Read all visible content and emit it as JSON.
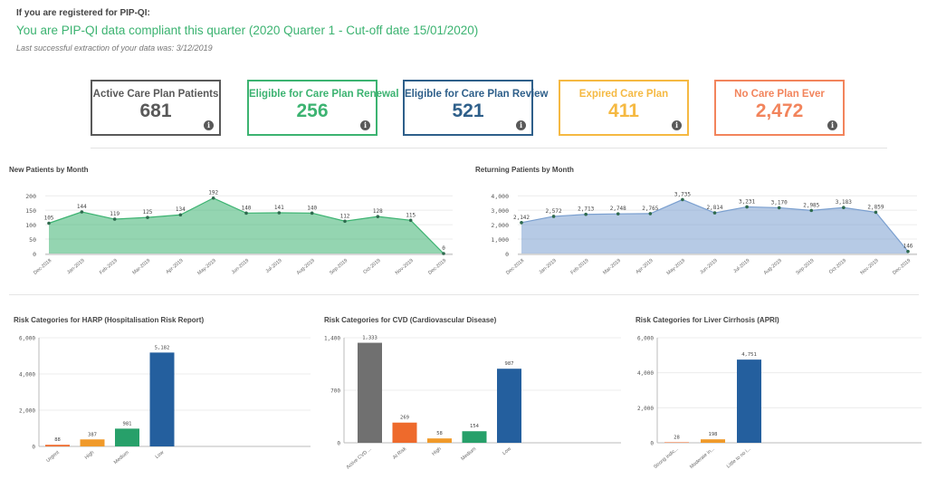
{
  "header": {
    "registered_label": "If you are registered for PIP-QI:",
    "compliance_text": "You are PIP-QI data compliant this quarter (2020 Quarter 1 - Cut-off date 15/01/2020)",
    "extraction_text": "Last successful extraction of your data was: 3/12/2019"
  },
  "kpis": [
    {
      "label": "Active Care Plan Patients",
      "value": "681",
      "color": "#595959"
    },
    {
      "label": "Eligible for Care Plan Renewal",
      "value": "256",
      "color": "#3cb371"
    },
    {
      "label": "Eligible for Care Plan Review",
      "value": "521",
      "color": "#2e5f8a"
    },
    {
      "label": "Expired Care Plan",
      "value": "411",
      "color": "#f5b942"
    },
    {
      "label": "No Care Plan Ever",
      "value": "2,472",
      "color": "#f2845c"
    }
  ],
  "info_glyph": "i",
  "colors": {
    "green": "#3cb371",
    "blue": "#7a9fcf",
    "grey": "#707070",
    "orange_red": "#ee6a2c",
    "orange": "#f09a2a",
    "teal": "#27a06a",
    "navy": "#245f9e"
  },
  "chart_data": [
    {
      "type": "area",
      "title": "New Patients by Month",
      "categories": [
        "Dec-2018",
        "Jan-2019",
        "Feb-2019",
        "Mar-2019",
        "Apr-2019",
        "May-2019",
        "Jun-2019",
        "Jul-2019",
        "Aug-2019",
        "Sep-2019",
        "Oct-2019",
        "Nov-2019",
        "Dec-2019"
      ],
      "values": [
        105,
        144,
        119,
        125,
        134,
        192,
        140,
        141,
        140,
        112,
        128,
        115,
        0
      ],
      "labels": [
        "105",
        "144",
        "119",
        "125",
        "134",
        "192",
        "140",
        "141",
        "140",
        "112",
        "128",
        "115",
        "0"
      ],
      "yticks": [
        0,
        50,
        100,
        150,
        200
      ],
      "ytick_labels": [
        "0",
        "50",
        "100",
        "150",
        "200"
      ],
      "ylim": [
        0,
        210
      ],
      "color": "#3cb371"
    },
    {
      "type": "area",
      "title": "Returning Patients by Month",
      "categories": [
        "Dec-2018",
        "Jan-2019",
        "Feb-2019",
        "Mar-2019",
        "Apr-2019",
        "May-2019",
        "Jun-2019",
        "Jul-2019",
        "Aug-2019",
        "Sep-2019",
        "Oct-2019",
        "Nov-2019",
        "Dec-2019"
      ],
      "values": [
        2142,
        2572,
        2713,
        2748,
        2765,
        3735,
        2814,
        3231,
        3170,
        2985,
        3183,
        2859,
        146
      ],
      "labels": [
        "2,142",
        "2,572",
        "2,713",
        "2,748",
        "2,765",
        "3,735",
        "2,814",
        "3,231",
        "3,170",
        "2,985",
        "3,183",
        "2,859",
        "146"
      ],
      "yticks": [
        0,
        1000,
        2000,
        3000,
        4000
      ],
      "ytick_labels": [
        "0",
        "1,000",
        "2,000",
        "3,000",
        "4,000"
      ],
      "ylim": [
        0,
        4200
      ],
      "color": "#7a9fcf"
    },
    {
      "type": "bar",
      "title": "Risk Categories for HARP (Hospitalisation Risk Report)",
      "categories": [
        "Urgent",
        "High",
        "Medium",
        "Low"
      ],
      "values": [
        88,
        387,
        981,
        5182
      ],
      "labels": [
        "88",
        "387",
        "981",
        "5,182"
      ],
      "colors": [
        "#ee6a2c",
        "#f09a2a",
        "#27a06a",
        "#245f9e"
      ],
      "yticks": [
        0,
        2000,
        4000,
        6000
      ],
      "ytick_labels": [
        "0",
        "2,000",
        "4,000",
        "6,000"
      ],
      "ylim": [
        0,
        6000
      ]
    },
    {
      "type": "bar",
      "title": "Risk Categories for CVD (Cardiovascular Disease)",
      "categories": [
        "Active CVD ...",
        "At Risk",
        "High",
        "Medium",
        "Low"
      ],
      "values": [
        1333,
        269,
        58,
        154,
        987
      ],
      "labels": [
        "1,333",
        "269",
        "58",
        "154",
        "987"
      ],
      "colors": [
        "#707070",
        "#ee6a2c",
        "#f09a2a",
        "#27a06a",
        "#245f9e"
      ],
      "yticks": [
        0,
        700,
        1400
      ],
      "ytick_labels": [
        "0",
        "700",
        "1,400"
      ],
      "ylim": [
        0,
        1400
      ]
    },
    {
      "type": "bar",
      "title": "Risk Categories for Liver Cirrhosis (APRI)",
      "categories": [
        "Strong indic...",
        "Moderate in...",
        "Little to no i..."
      ],
      "values": [
        28,
        198,
        4751
      ],
      "labels": [
        "28",
        "198",
        "4,751"
      ],
      "colors": [
        "#ee6a2c",
        "#f09a2a",
        "#245f9e"
      ],
      "yticks": [
        0,
        2000,
        4000,
        6000
      ],
      "ytick_labels": [
        "0",
        "2,000",
        "4,000",
        "6,000"
      ],
      "ylim": [
        0,
        6000
      ]
    }
  ]
}
